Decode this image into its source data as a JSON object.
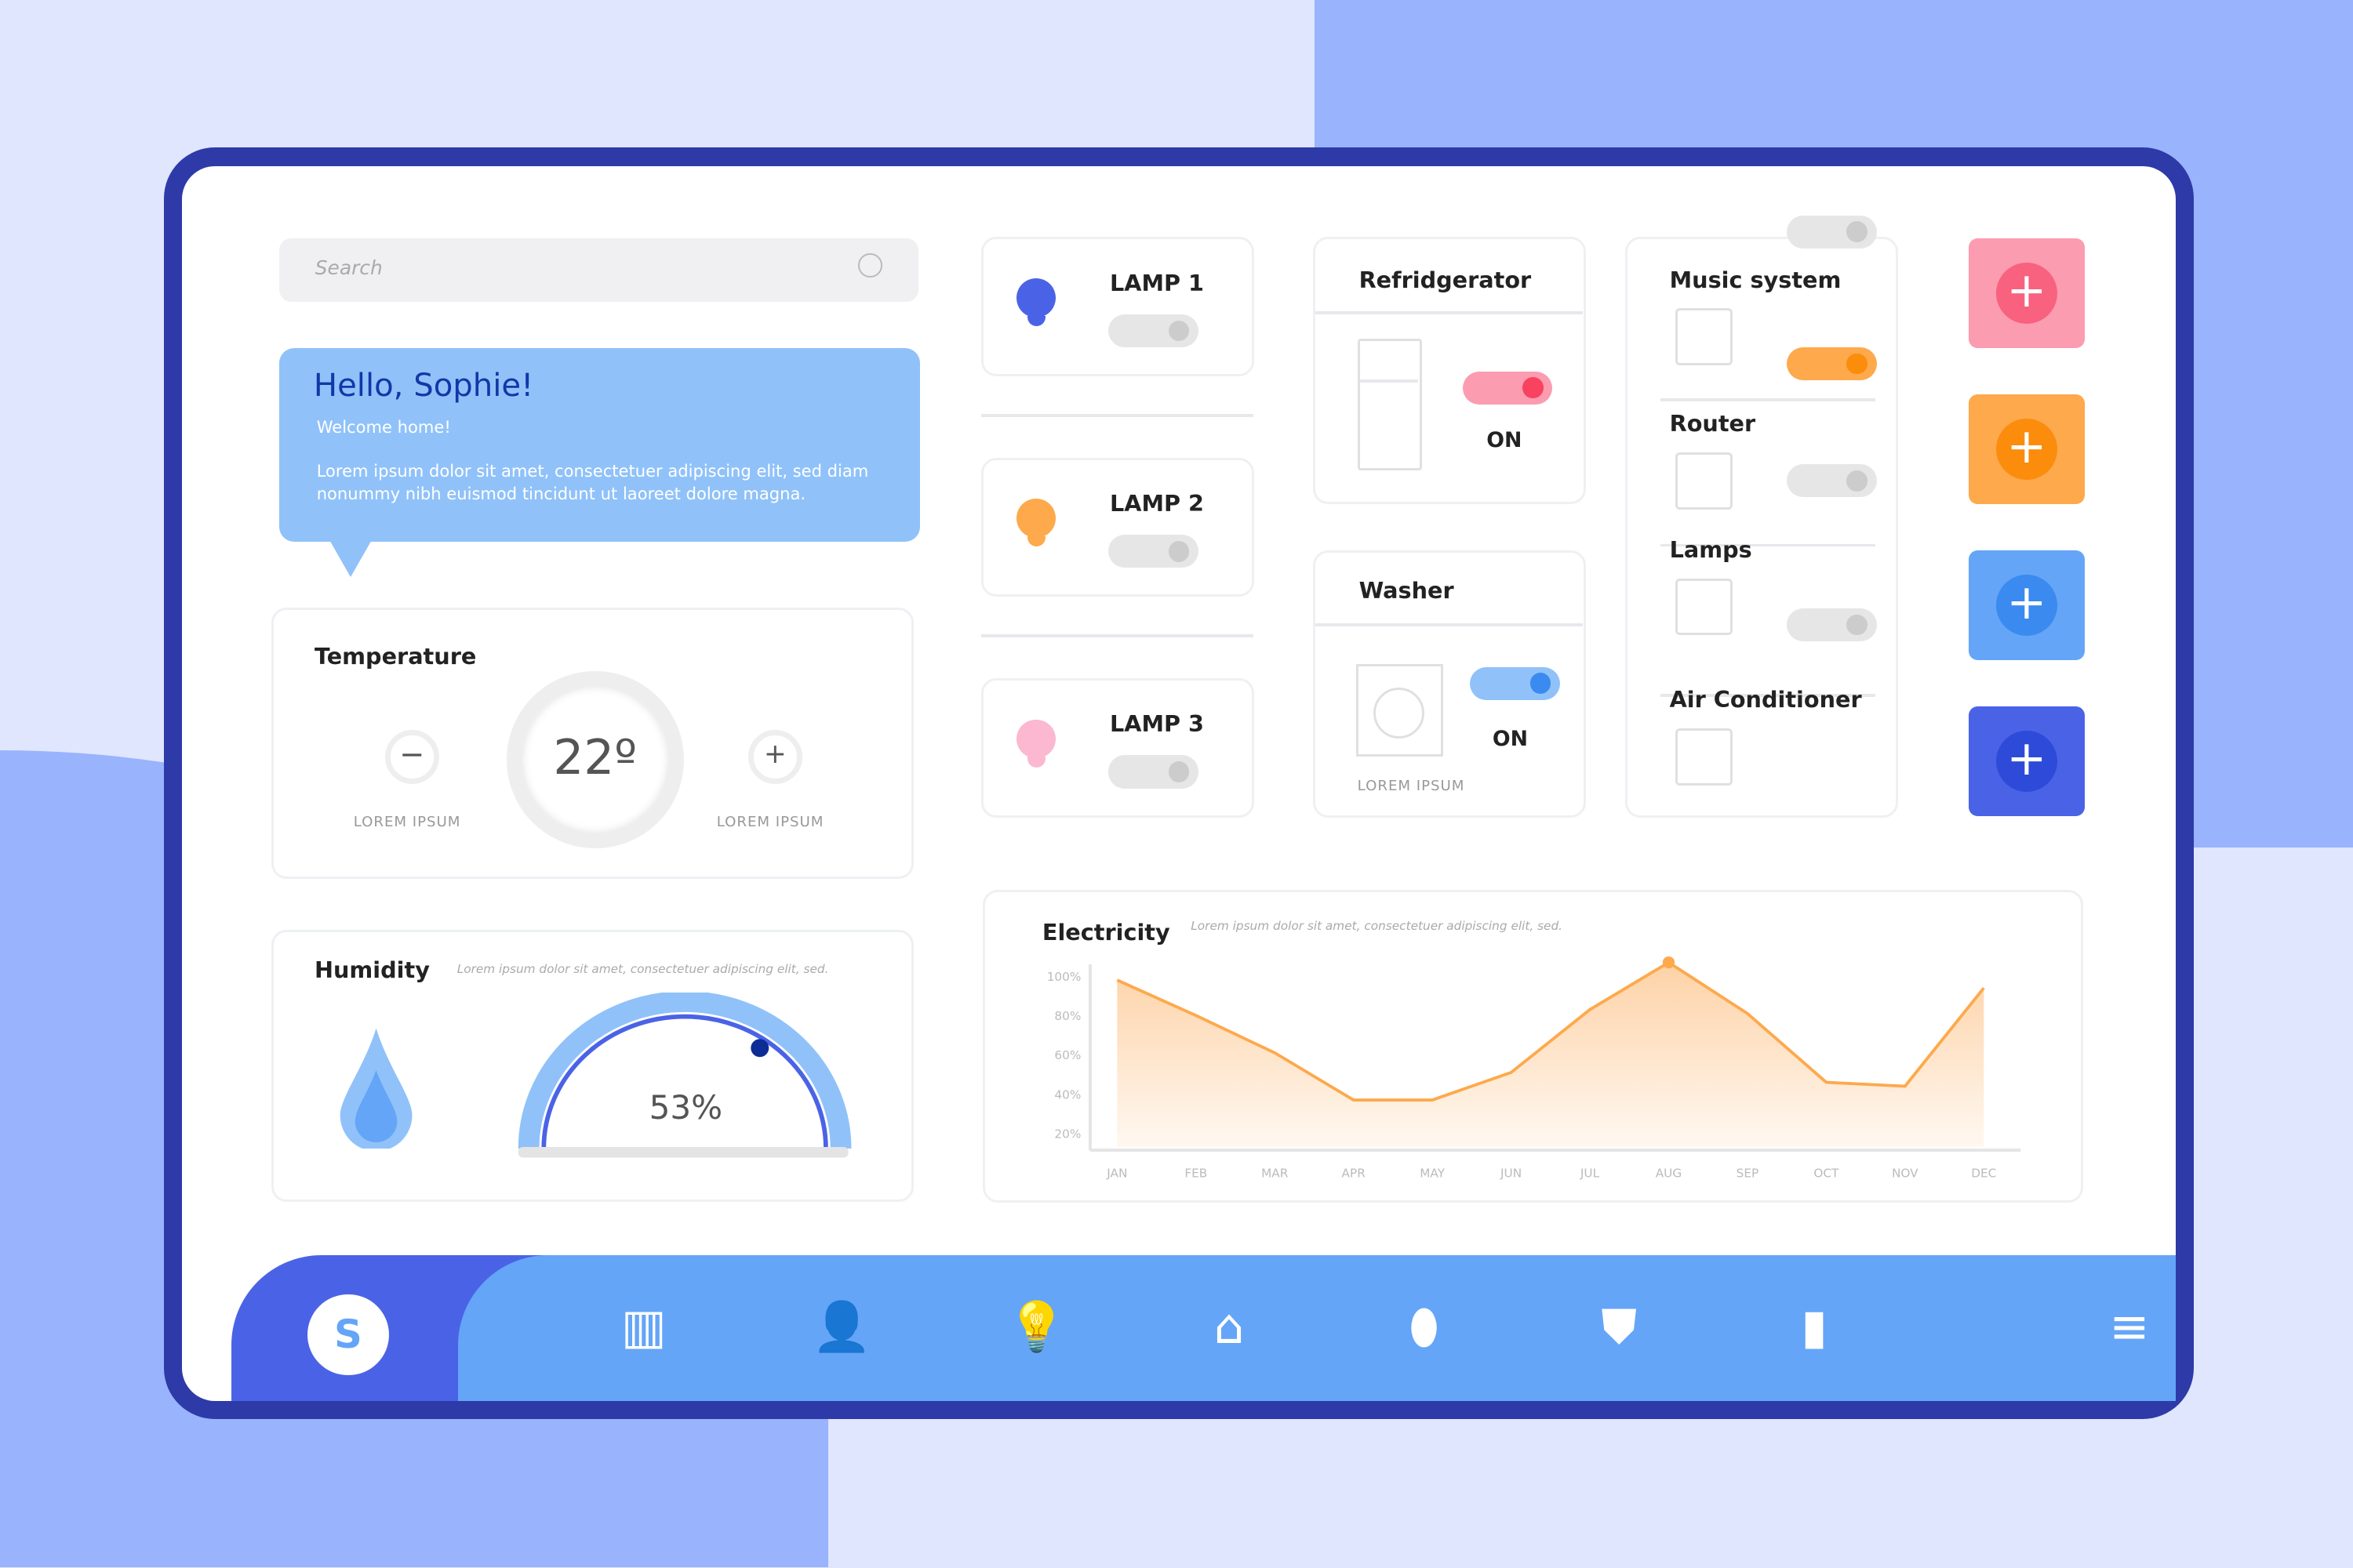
{
  "search": {
    "placeholder": "Search",
    "icon": "search-icon"
  },
  "greeting": {
    "title": "Hello, Sophie!",
    "subtitle": "Welcome home!",
    "body": "Lorem ipsum dolor sit amet, consectetuer adipiscing elit, sed diam nonummy nibh euismod tincidunt ut laoreet dolore magna."
  },
  "temperature": {
    "title": "Temperature",
    "value": "22º",
    "minus_label": "LOREM IPSUM",
    "plus_label": "LOREM IPSUM"
  },
  "humidity": {
    "title": "Humidity",
    "desc": "Lorem ipsum dolor sit amet, consectetuer adipiscing elit, sed.",
    "value": "53%",
    "level": 0.53
  },
  "lamps": [
    {
      "label": "LAMP 1",
      "color": "#4a63e6",
      "on": false
    },
    {
      "label": "LAMP 2",
      "color": "#fda94c",
      "on": false
    },
    {
      "label": "LAMP 3",
      "color": "#fbb8d0",
      "on": false
    }
  ],
  "refrigerator": {
    "title": "Refridgerator",
    "state": "ON",
    "toggle_color": "#f87f97"
  },
  "washer": {
    "title": "Washer",
    "state": "ON",
    "caption": "LOREM IPSUM",
    "toggle_color": "#90c2f9"
  },
  "devices": [
    {
      "label": "Music system",
      "on": false
    },
    {
      "label": "Router",
      "on": true
    },
    {
      "label": "Lamps",
      "on": false
    },
    {
      "label": "Air Conditioner",
      "on": false
    }
  ],
  "add_buttons": [
    {
      "color": "#fb9cb0",
      "inner": "#f8627f"
    },
    {
      "color": "#fda94c",
      "inner": "#fb8c0c"
    },
    {
      "color": "#64a5f7",
      "inner": "#3a8af0"
    },
    {
      "color": "#4a63e6",
      "inner": "#2d4bd8"
    }
  ],
  "electricity": {
    "title": "Electricity",
    "desc": "Lorem ipsum dolor sit amet, consectetuer adipiscing elit, sed."
  },
  "chart_data": {
    "type": "area",
    "x": [
      "JAN",
      "FEB",
      "MAR",
      "APR",
      "MAY",
      "JUN",
      "JUL",
      "AUG",
      "SEP",
      "OCT",
      "NOV",
      "DEC"
    ],
    "values": [
      98,
      80,
      61,
      37,
      37,
      51,
      83,
      107,
      81,
      46,
      44,
      94
    ],
    "yticks": [
      "100%",
      "80%",
      "60%",
      "40%",
      "20%"
    ],
    "highlight": "AUG",
    "color": "#fda94c"
  },
  "nav": {
    "avatar": "S",
    "items": [
      "dashboard-icon",
      "user-icon",
      "bulb-icon",
      "home-icon",
      "location-icon",
      "shield-icon",
      "stats-icon",
      "menu-icon"
    ]
  }
}
